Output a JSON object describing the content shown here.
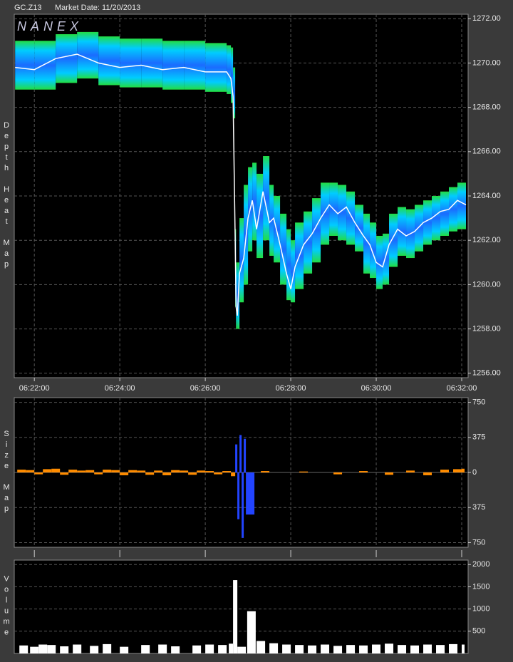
{
  "header": {
    "symbol": "GC.Z13",
    "market_date": "Market Date: 11/20/2013",
    "logo": "NANEX"
  },
  "chart_data": [
    {
      "type": "line",
      "label": "Depth Heat Map",
      "color": "#ffffff",
      "grid": true,
      "xlim": [
        21.53,
        32.15
      ],
      "ylim": [
        1255.8,
        1272.2
      ],
      "xticks": [
        {
          "value": 22,
          "label": "06:22:00"
        },
        {
          "value": 24,
          "label": "06:24:00"
        },
        {
          "value": 26,
          "label": "06:26:00"
        },
        {
          "value": 28,
          "label": "06:28:00"
        },
        {
          "value": 30,
          "label": "06:30:00"
        },
        {
          "value": 32,
          "label": "06:32:00"
        }
      ],
      "yticks": [
        {
          "value": 1256,
          "label": "1256.00"
        },
        {
          "value": 1258,
          "label": "1258.00"
        },
        {
          "value": 1260,
          "label": "1260.00"
        },
        {
          "value": 1262,
          "label": "1262.00"
        },
        {
          "value": 1264,
          "label": "1264.00"
        },
        {
          "value": 1266,
          "label": "1266.00"
        },
        {
          "value": 1268,
          "label": "1268.00"
        },
        {
          "value": 1270,
          "label": "1270.00"
        },
        {
          "value": 1272,
          "label": "1272.00"
        }
      ],
      "x": [
        21.55,
        22,
        22.5,
        23,
        23.5,
        24,
        24.5,
        25,
        25.5,
        26,
        26.5,
        26.6,
        26.65,
        26.7,
        26.72,
        26.75,
        26.8,
        26.9,
        27.0,
        27.1,
        27.2,
        27.35,
        27.5,
        27.6,
        27.75,
        27.9,
        28.0,
        28.1,
        28.3,
        28.5,
        28.7,
        28.9,
        29.1,
        29.3,
        29.5,
        29.7,
        29.85,
        30.0,
        30.15,
        30.3,
        30.5,
        30.7,
        30.9,
        31.1,
        31.3,
        31.5,
        31.7,
        31.9,
        32.1
      ],
      "values": [
        1269.8,
        1269.7,
        1270.2,
        1270.4,
        1270.0,
        1269.8,
        1269.9,
        1269.7,
        1269.8,
        1269.6,
        1269.6,
        1269.3,
        1268.5,
        1262,
        1259,
        1258.6,
        1260.5,
        1261.2,
        1263,
        1263.8,
        1262.5,
        1264.2,
        1262.8,
        1263.0,
        1261.8,
        1260.5,
        1259.8,
        1260.8,
        1261.8,
        1262.3,
        1263.0,
        1263.6,
        1263.2,
        1263.5,
        1262.8,
        1262.2,
        1261.8,
        1261.0,
        1260.8,
        1261.8,
        1262.5,
        1262.2,
        1262.4,
        1262.8,
        1263.0,
        1263.3,
        1263.4,
        1263.8,
        1263.6
      ],
      "upper": [
        1271.0,
        1271.0,
        1271.3,
        1271.4,
        1271.2,
        1271.1,
        1271.1,
        1271.0,
        1271.0,
        1270.9,
        1270.8,
        1270.7,
        1269.8,
        1262.5,
        1261.0,
        1261.0,
        1263.0,
        1264.5,
        1265.3,
        1265.5,
        1265.0,
        1265.8,
        1264.5,
        1264.0,
        1263.2,
        1262.5,
        1262.0,
        1262.8,
        1263.3,
        1263.9,
        1264.6,
        1264.6,
        1264.5,
        1264.2,
        1263.6,
        1263.2,
        1262.8,
        1262.2,
        1262.3,
        1263.2,
        1263.5,
        1263.4,
        1263.6,
        1263.8,
        1264.0,
        1264.2,
        1264.4,
        1264.6,
        1264.6
      ],
      "lower": [
        1268.8,
        1268.8,
        1269.1,
        1269.3,
        1269.0,
        1268.9,
        1268.9,
        1268.8,
        1268.8,
        1268.7,
        1268.6,
        1268.2,
        1267.5,
        1259.0,
        1258.0,
        1258.0,
        1259.2,
        1260.0,
        1261.5,
        1262.0,
        1261.2,
        1262.0,
        1261.3,
        1261.0,
        1260.0,
        1259.3,
        1259.2,
        1259.8,
        1260.5,
        1261.0,
        1261.8,
        1262.2,
        1262.0,
        1261.8,
        1261.5,
        1260.5,
        1260.3,
        1259.8,
        1260.0,
        1260.8,
        1261.3,
        1261.2,
        1261.5,
        1261.8,
        1262.0,
        1262.2,
        1262.4,
        1262.5,
        1262.5
      ]
    },
    {
      "type": "bar",
      "label": "Size Map",
      "color": "#ff8c00",
      "major_color": "#2244ff",
      "grid": true,
      "xlim": [
        21.53,
        32.15
      ],
      "ylim": [
        -800,
        800
      ],
      "yticks": [
        {
          "value": -750,
          "label": "750"
        },
        {
          "value": -375,
          "label": "375"
        },
        0,
        375,
        750
      ],
      "x": [
        21.6,
        21.8,
        22.0,
        22.2,
        22.4,
        22.6,
        22.8,
        23.0,
        23.2,
        23.4,
        23.6,
        23.8,
        24.0,
        24.2,
        24.4,
        24.6,
        24.8,
        25.0,
        25.2,
        25.4,
        25.6,
        25.8,
        26.0,
        26.2,
        26.4,
        26.6,
        26.7,
        26.75,
        26.8,
        26.85,
        26.9,
        26.95,
        27.3,
        28.2,
        29.0,
        29.6,
        30.2,
        30.7,
        31.1,
        31.5,
        31.8,
        32.0
      ],
      "values": [
        30,
        25,
        -20,
        35,
        40,
        -25,
        30,
        20,
        25,
        -20,
        30,
        25,
        -30,
        25,
        20,
        -25,
        20,
        -30,
        25,
        20,
        -25,
        20,
        15,
        -20,
        15,
        -40,
        300,
        -500,
        400,
        -700,
        360,
        -450,
        15,
        10,
        -20,
        15,
        -25,
        20,
        -30,
        30,
        35,
        40
      ]
    },
    {
      "type": "bar",
      "label": "Volume",
      "color": "#ffffff",
      "grid": true,
      "xlim": [
        21.53,
        32.15
      ],
      "ylim": [
        0,
        2100
      ],
      "yticks": [
        500,
        1000,
        1500,
        2000
      ],
      "x": [
        21.65,
        21.9,
        22.1,
        22.3,
        22.6,
        22.9,
        23.3,
        23.6,
        24.0,
        24.5,
        24.9,
        25.2,
        25.7,
        26.0,
        26.3,
        26.55,
        26.65,
        26.75,
        26.98,
        27.2,
        27.5,
        27.8,
        28.1,
        28.4,
        28.7,
        29.0,
        29.3,
        29.6,
        29.9,
        30.2,
        30.5,
        30.8,
        31.1,
        31.4,
        31.7,
        32.0
      ],
      "values": [
        180,
        150,
        200,
        190,
        160,
        200,
        170,
        210,
        150,
        190,
        200,
        160,
        180,
        200,
        190,
        220,
        1650,
        150,
        950,
        280,
        230,
        200,
        190,
        180,
        200,
        170,
        190,
        180,
        200,
        220,
        190,
        180,
        200,
        190,
        210,
        200
      ]
    }
  ]
}
